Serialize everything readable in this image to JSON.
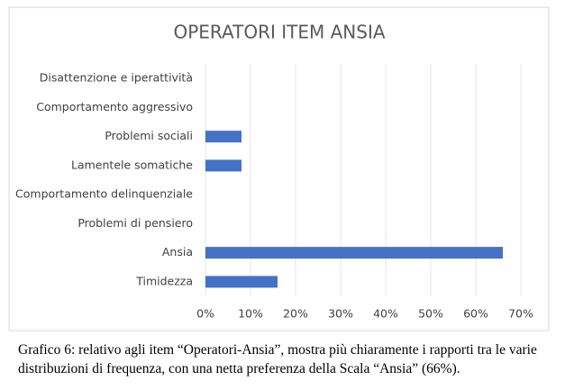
{
  "chart_data": {
    "type": "bar",
    "orientation": "horizontal",
    "title": "OPERATORI ITEM ANSIA",
    "categories": [
      "Disattenzione e iperattività",
      "Comportamento aggressivo",
      "Problemi sociali",
      "Lamentele somatiche",
      "Comportamento delinquenziale",
      "Problemi di pensiero",
      "Ansia",
      "Timidezza"
    ],
    "values": [
      0,
      0,
      8,
      8,
      0,
      0,
      66,
      16
    ],
    "color": "#4472c4",
    "xlim": [
      0,
      70
    ],
    "xticks": [
      {
        "value": 0,
        "label": "0%"
      },
      {
        "value": 10,
        "label": "10%"
      },
      {
        "value": 20,
        "label": "20%"
      },
      {
        "value": 30,
        "label": "30%"
      },
      {
        "value": 40,
        "label": "40%"
      },
      {
        "value": 50,
        "label": "50%"
      },
      {
        "value": 60,
        "label": "60%"
      },
      {
        "value": 70,
        "label": "70%"
      }
    ],
    "grid": true
  },
  "caption": "Grafico 6: relativo agli item “Operatori-Ansia”, mostra più chiaramente i rapporti tra le varie distribuzioni di frequenza, con una netta preferenza della Scala “Ansia” (66%)."
}
